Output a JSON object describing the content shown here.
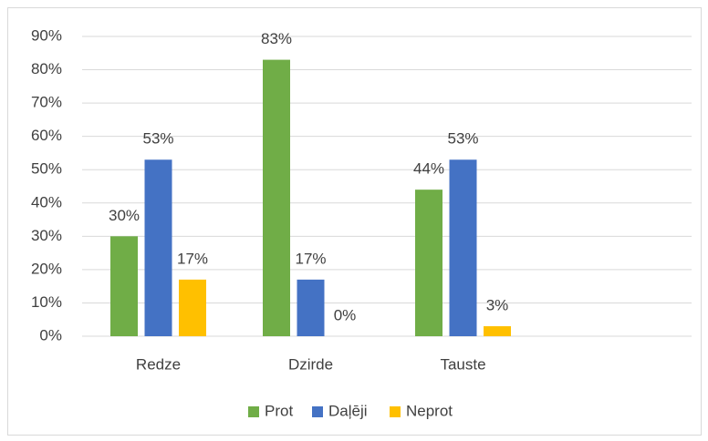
{
  "chart_data": {
    "type": "bar",
    "categories": [
      "Redze",
      "Dzirde",
      "Tauste",
      null
    ],
    "series": [
      {
        "name": "Prot",
        "color": "#70ad47",
        "values": [
          30,
          83,
          44,
          null
        ],
        "value_labels": [
          "30%",
          "83%",
          "44%",
          null
        ]
      },
      {
        "name": "Daļēji",
        "color": "#4472c4",
        "values": [
          53,
          17,
          53,
          null
        ],
        "value_labels": [
          "53%",
          "17%",
          "53%",
          null
        ]
      },
      {
        "name": "Neprot",
        "color": "#ffc000",
        "values": [
          17,
          0,
          3,
          null
        ],
        "value_labels": [
          "17%",
          "0%",
          "3%",
          null
        ]
      }
    ],
    "ylim": [
      0,
      90
    ],
    "yticks": [
      {
        "value": 0,
        "label": "0%"
      },
      {
        "value": 10,
        "label": "10%"
      },
      {
        "value": 20,
        "label": "20%"
      },
      {
        "value": 30,
        "label": "30%"
      },
      {
        "value": 40,
        "label": "40%"
      },
      {
        "value": 50,
        "label": "50%"
      },
      {
        "value": 60,
        "label": "60%"
      },
      {
        "value": 70,
        "label": "70%"
      },
      {
        "value": 80,
        "label": "80%"
      },
      {
        "value": 90,
        "label": "90%"
      }
    ],
    "grid": true,
    "legend": "bottom"
  }
}
